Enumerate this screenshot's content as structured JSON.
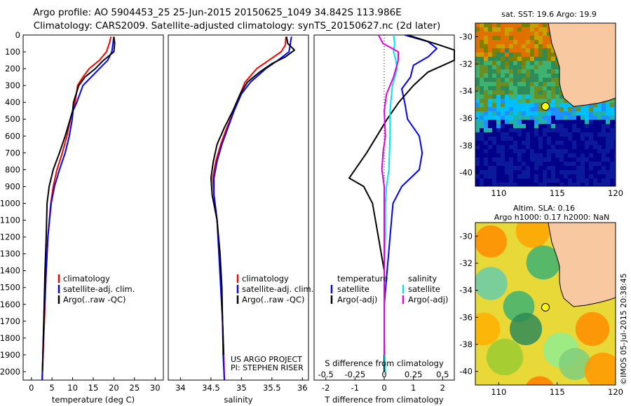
{
  "header": {
    "line1": "Argo profile: AO 5904453_25 25-Jun-2015 20150625_1049 34.842S 113.986E",
    "line2": "Climatology: CARS2009. Satellite-adjusted climatology: synTS_20150627.nc (2d later)"
  },
  "colors": {
    "climatology": "#ff0000",
    "satellite": "#0000ff",
    "argo": "#000000",
    "satellite_salinity": "#00e5ee",
    "argo_salinity_diff": "#e000e0",
    "land": "#f8c8a0"
  },
  "chart_data": [
    {
      "type": "line",
      "id": "temperature",
      "xlabel": "temperature (deg C)",
      "xlim": [
        -2,
        32
      ],
      "xticks": [
        0,
        5,
        10,
        15,
        20,
        25,
        30
      ],
      "ylim": [
        0,
        2050
      ],
      "yticks": [
        0,
        100,
        200,
        300,
        400,
        500,
        600,
        700,
        800,
        900,
        1000,
        1100,
        1200,
        1300,
        1400,
        1500,
        1600,
        1700,
        1800,
        1900,
        2000
      ],
      "legend": [
        "climatology",
        "satellite-adj. clim.",
        "Argo(..raw -QC)"
      ],
      "series": [
        {
          "name": "climatology",
          "color": "#ff0000",
          "points": [
            [
              19.3,
              10
            ],
            [
              18.9,
              50
            ],
            [
              18.2,
              100
            ],
            [
              16.5,
              150
            ],
            [
              14.0,
              200
            ],
            [
              12.5,
              250
            ],
            [
              11.2,
              300
            ],
            [
              10.6,
              400
            ],
            [
              10.0,
              450
            ],
            [
              9.5,
              500
            ],
            [
              8.6,
              600
            ],
            [
              7.5,
              700
            ],
            [
              6.2,
              800
            ],
            [
              5.3,
              900
            ],
            [
              4.7,
              1000
            ],
            [
              4.0,
              1200
            ],
            [
              3.6,
              1400
            ],
            [
              3.3,
              1600
            ],
            [
              3.0,
              1800
            ],
            [
              2.6,
              2050
            ]
          ]
        },
        {
          "name": "satellite-adj. clim.",
          "color": "#0000ff",
          "points": [
            [
              20.0,
              10
            ],
            [
              19.8,
              50
            ],
            [
              19.5,
              100
            ],
            [
              18.5,
              150
            ],
            [
              16.5,
              200
            ],
            [
              14.5,
              250
            ],
            [
              12.5,
              300
            ],
            [
              11.0,
              400
            ],
            [
              10.1,
              450
            ],
            [
              9.9,
              500
            ],
            [
              9.2,
              600
            ],
            [
              8.2,
              700
            ],
            [
              6.8,
              800
            ],
            [
              5.6,
              900
            ],
            [
              4.8,
              1000
            ],
            [
              4.0,
              1200
            ],
            [
              3.6,
              1400
            ],
            [
              3.2,
              1600
            ],
            [
              2.9,
              1800
            ],
            [
              2.6,
              2050
            ]
          ]
        },
        {
          "name": "Argo(..raw -QC)",
          "color": "#000000",
          "points": [
            [
              20.0,
              10
            ],
            [
              20.2,
              50
            ],
            [
              20.0,
              100
            ],
            [
              17.5,
              150
            ],
            [
              15.5,
              200
            ],
            [
              13.0,
              250
            ],
            [
              11.5,
              300
            ],
            [
              10.2,
              400
            ],
            [
              10.0,
              450
            ],
            [
              9.4,
              500
            ],
            [
              8.2,
              600
            ],
            [
              6.8,
              700
            ],
            [
              5.3,
              800
            ],
            [
              4.3,
              900
            ],
            [
              3.8,
              1000
            ],
            [
              3.6,
              1200
            ],
            [
              3.3,
              1400
            ],
            [
              3.1,
              1600
            ],
            [
              2.9,
              1800
            ],
            [
              2.7,
              2000
            ]
          ]
        }
      ],
      "annotations": []
    },
    {
      "type": "line",
      "id": "salinity",
      "xlabel": "salinity",
      "xlim": [
        33.8,
        36.1
      ],
      "xticks": [
        34,
        34.5,
        35,
        35.5,
        36
      ],
      "xtick_labels": [
        "34",
        "34.5",
        "35",
        "35.5",
        "36"
      ],
      "ylim": [
        0,
        2050
      ],
      "legend": [
        "climatology",
        "satellite-adj. clim.",
        "Argo(..raw -QC)"
      ],
      "series": [
        {
          "name": "climatology",
          "color": "#ff0000",
          "points": [
            [
              35.73,
              10
            ],
            [
              35.72,
              60
            ],
            [
              35.65,
              100
            ],
            [
              35.45,
              150
            ],
            [
              35.25,
              200
            ],
            [
              35.06,
              280
            ],
            [
              34.98,
              350
            ],
            [
              34.88,
              450
            ],
            [
              34.76,
              550
            ],
            [
              34.66,
              650
            ],
            [
              34.58,
              750
            ],
            [
              34.53,
              850
            ],
            [
              34.55,
              950
            ],
            [
              34.6,
              1100
            ],
            [
              34.64,
              1300
            ],
            [
              34.67,
              1500
            ],
            [
              34.69,
              1700
            ],
            [
              34.71,
              1900
            ],
            [
              34.72,
              2050
            ]
          ]
        },
        {
          "name": "satellite-adj. clim.",
          "color": "#0000ff",
          "points": [
            [
              35.82,
              10
            ],
            [
              35.8,
              60
            ],
            [
              35.78,
              100
            ],
            [
              35.6,
              150
            ],
            [
              35.4,
              200
            ],
            [
              35.15,
              280
            ],
            [
              35.0,
              350
            ],
            [
              34.88,
              450
            ],
            [
              34.78,
              550
            ],
            [
              34.68,
              650
            ],
            [
              34.6,
              750
            ],
            [
              34.55,
              850
            ],
            [
              34.55,
              950
            ],
            [
              34.6,
              1100
            ],
            [
              34.63,
              1300
            ],
            [
              34.66,
              1500
            ],
            [
              34.69,
              1700
            ],
            [
              34.7,
              1900
            ],
            [
              34.72,
              2050
            ]
          ]
        },
        {
          "name": "Argo(..raw -QC)",
          "color": "#000000",
          "points": [
            [
              35.74,
              10
            ],
            [
              35.76,
              50
            ],
            [
              35.87,
              90
            ],
            [
              35.72,
              130
            ],
            [
              35.5,
              170
            ],
            [
              35.3,
              220
            ],
            [
              35.1,
              280
            ],
            [
              34.98,
              350
            ],
            [
              34.86,
              450
            ],
            [
              34.72,
              550
            ],
            [
              34.6,
              650
            ],
            [
              34.54,
              750
            ],
            [
              34.5,
              850
            ],
            [
              34.52,
              950
            ],
            [
              34.6,
              1100
            ],
            [
              34.65,
              1300
            ],
            [
              34.68,
              1500
            ],
            [
              34.69,
              1700
            ],
            [
              34.71,
              1900
            ]
          ]
        }
      ],
      "annotations": [
        "US ARGO PROJECT",
        "PI: STEPHEN RISER"
      ]
    },
    {
      "type": "line",
      "id": "difference",
      "xlabel": "T difference from climatology",
      "top_axis_label": "S difference from climatology",
      "xlim": [
        -2.4,
        2.4
      ],
      "xticks": [
        -2,
        -1,
        0,
        1,
        2
      ],
      "top_xticks": [
        -0.5,
        -0.25,
        0,
        0.25,
        0.5
      ],
      "ylim": [
        0,
        2050
      ],
      "legend_temperature_title": "temperature",
      "legend_salinity_title": "salinity",
      "legend": [
        "satellite",
        "Argo(-adj)",
        "satellite",
        "Argo(-adj)"
      ],
      "series": [
        {
          "name": "satellite (temperature)",
          "color": "#0000ff",
          "points": [
            [
              0.7,
              0
            ],
            [
              1.5,
              40
            ],
            [
              1.8,
              80
            ],
            [
              1.5,
              130
            ],
            [
              1.0,
              180
            ],
            [
              0.9,
              250
            ],
            [
              0.6,
              320
            ],
            [
              0.7,
              400
            ],
            [
              0.8,
              500
            ],
            [
              1.2,
              600
            ],
            [
              1.3,
              700
            ],
            [
              1.2,
              800
            ],
            [
              0.6,
              900
            ],
            [
              0.3,
              1000
            ],
            [
              0.2,
              1200
            ],
            [
              0.1,
              1400
            ],
            [
              0.0,
              1600
            ],
            [
              0.0,
              1800
            ],
            [
              0.0,
              2000
            ]
          ]
        },
        {
          "name": "Argo(-adj) (temperature)",
          "color": "#000000",
          "points": [
            [
              0.8,
              0
            ],
            [
              1.9,
              60
            ],
            [
              2.4,
              90
            ],
            [
              2.4,
              150
            ],
            [
              1.5,
              220
            ],
            [
              1.0,
              300
            ],
            [
              0.5,
              400
            ],
            [
              0.1,
              500
            ],
            [
              -0.6,
              700
            ],
            [
              -1.0,
              800
            ],
            [
              -1.2,
              850
            ],
            [
              -0.7,
              900
            ],
            [
              -0.4,
              1000
            ],
            [
              -0.2,
              1200
            ],
            [
              0.0,
              1400
            ],
            [
              0.0,
              1600
            ],
            [
              0.0,
              1800
            ],
            [
              0.0,
              2000
            ]
          ]
        },
        {
          "name": "satellite (salinity)",
          "color": "#00e5ee",
          "points": [
            [
              0.08,
              0
            ],
            [
              0.09,
              50
            ],
            [
              0.08,
              100
            ],
            [
              0.1,
              150
            ],
            [
              0.11,
              200
            ],
            [
              0.07,
              300
            ],
            [
              0.05,
              450
            ],
            [
              0.05,
              600
            ],
            [
              0.04,
              800
            ],
            [
              0.02,
              900
            ],
            [
              0.01,
              1000
            ],
            [
              0.01,
              1200
            ],
            [
              0.0,
              1400
            ],
            [
              0.0,
              1600
            ],
            [
              0.0,
              1800
            ],
            [
              0.01,
              2000
            ]
          ]
        },
        {
          "name": "Argo(-adj) (salinity)",
          "color": "#e000e0",
          "points": [
            [
              -0.05,
              0
            ],
            [
              -0.01,
              50
            ],
            [
              0.12,
              100
            ],
            [
              0.12,
              150
            ],
            [
              0.08,
              250
            ],
            [
              0.02,
              350
            ],
            [
              0.0,
              450
            ],
            [
              0.01,
              600
            ],
            [
              -0.01,
              700
            ],
            [
              -0.02,
              800
            ],
            [
              0.0,
              900
            ],
            [
              0.0,
              1100
            ],
            [
              0.0,
              1300
            ],
            [
              0.0,
              1500
            ],
            [
              0.0,
              1700
            ],
            [
              0.0,
              1900
            ]
          ]
        }
      ],
      "annotations": []
    }
  ],
  "maps": {
    "xticks": [
      110,
      115,
      120
    ],
    "yticks": [
      -30,
      -32,
      -34,
      -36,
      -38,
      -40
    ],
    "lon": [
      108,
      120
    ],
    "lat": [
      -41,
      -29
    ],
    "profile_location": {
      "lon": 113.986,
      "lat": -34.842
    },
    "sst_title": "sat. SST: 19.6 Argo: 19.9",
    "sla_title_line1": "Altim. SLA: 0.16",
    "sla_title_line2": "Argo h1000: 0.17 h2000: NaN"
  },
  "footer": {
    "stamp": "©IMOS 05-Jul-2015 20:38:45"
  }
}
